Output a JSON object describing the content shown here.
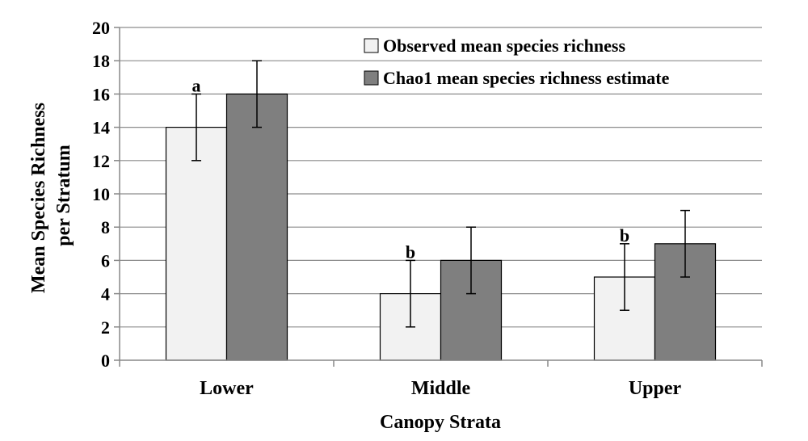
{
  "chart_data": {
    "type": "bar",
    "title": "",
    "xlabel": "Canopy Strata",
    "ylabel": [
      "Mean Species Richness",
      "per Stratum"
    ],
    "categories": [
      "Lower",
      "Middle",
      "Upper"
    ],
    "ylim": [
      0,
      20
    ],
    "yticks": [
      0,
      2,
      4,
      6,
      8,
      10,
      12,
      14,
      16,
      18,
      20
    ],
    "grid": true,
    "legend_position": "top-right",
    "series": [
      {
        "name": "Observed mean species richness",
        "values": [
          14,
          4,
          5
        ],
        "error_low": [
          12,
          2,
          3
        ],
        "error_high": [
          16,
          6,
          7
        ],
        "color": "#f2f2f2"
      },
      {
        "name": "Chao1 mean species richness estimate",
        "values": [
          16,
          6,
          7
        ],
        "error_low": [
          14,
          4,
          5
        ],
        "error_high": [
          18,
          8,
          9
        ],
        "color": "#7f7f7f"
      }
    ],
    "annotations": [
      "a",
      "b",
      "b"
    ]
  }
}
